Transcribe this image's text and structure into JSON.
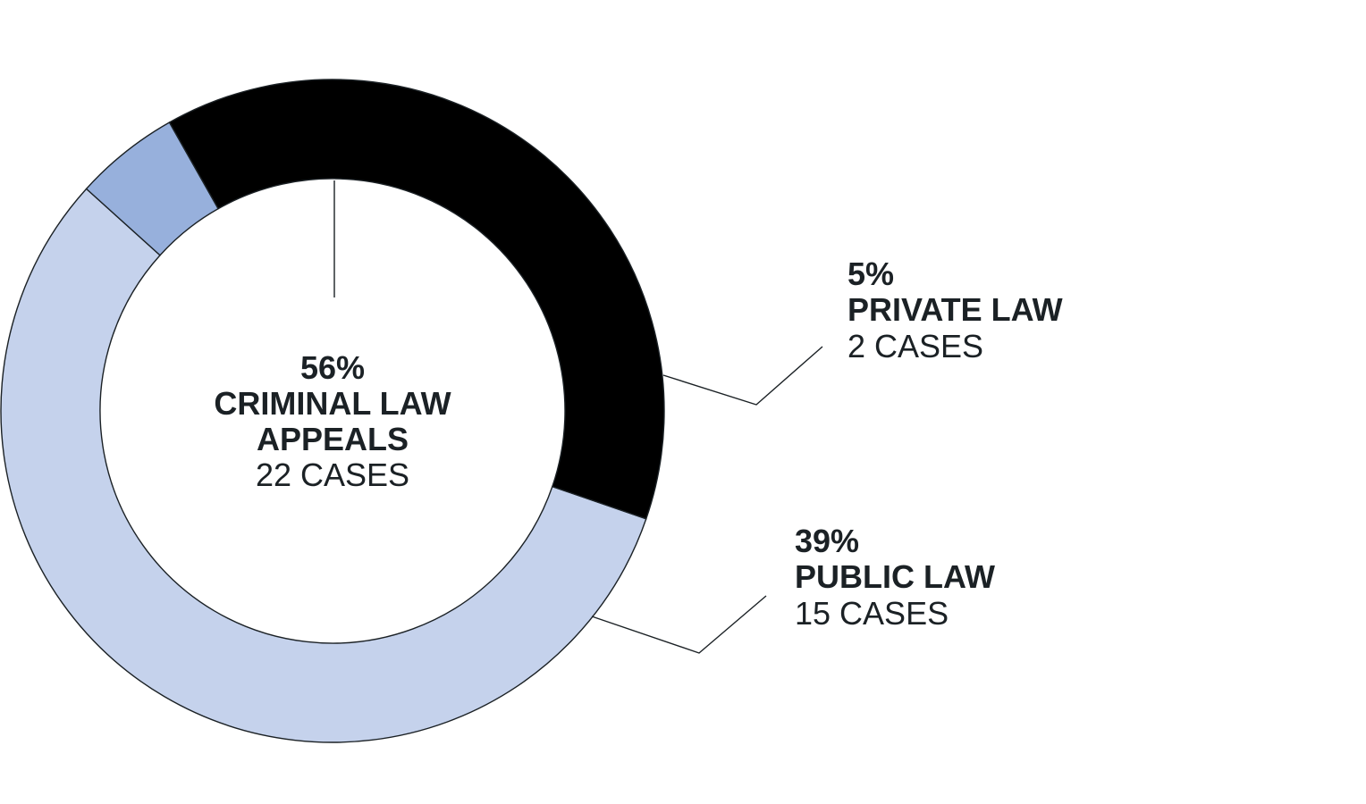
{
  "chart_data": {
    "type": "pie",
    "style": "donut",
    "slices": [
      {
        "percent_label": "56%",
        "category_lines": [
          "CRIMINAL LAW",
          "APPEALS"
        ],
        "count_label": "22 CASES",
        "value": 22,
        "color": "#c5d2ec"
      },
      {
        "percent_label": "5%",
        "category_lines": [
          "PRIVATE LAW"
        ],
        "count_label": "2 CASES",
        "value": 2,
        "color": "#97b0dc"
      },
      {
        "percent_label": "39%",
        "category_lines": [
          "PUBLIC LAW"
        ],
        "count_label": "15 CASES",
        "value": 15,
        "color": "#000000"
      }
    ]
  }
}
